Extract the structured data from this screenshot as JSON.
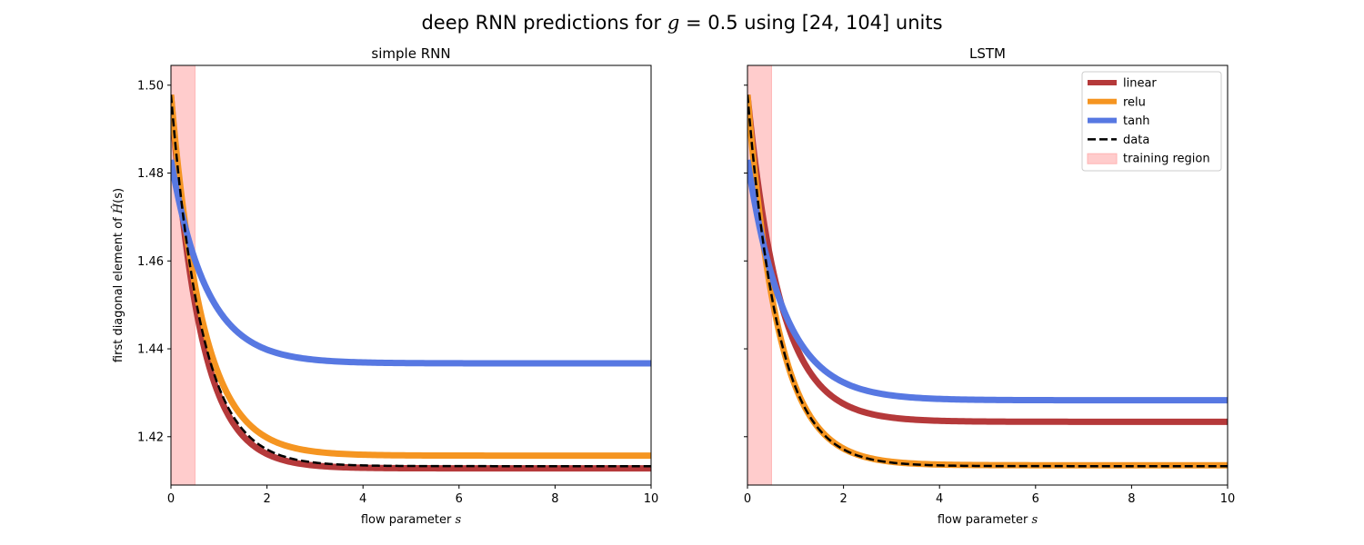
{
  "suptitle": {
    "prefix": "deep RNN predictions for ",
    "var": "g",
    "eq": " = 0.5",
    "suffix": " using [24, 104] units"
  },
  "ylabel": {
    "prefix": "first diagonal element of ",
    "symbol": "Ĥ",
    "arg": "(s)"
  },
  "xlabel": {
    "prefix": "flow parameter ",
    "var": "s"
  },
  "legend": {
    "placement": "top-right",
    "entries": [
      {
        "label": "linear",
        "kind": "line",
        "color": "#b5393a"
      },
      {
        "label": "relu",
        "kind": "line",
        "color": "#f59521"
      },
      {
        "label": "tanh",
        "kind": "line",
        "color": "#5778e2"
      },
      {
        "label": "data",
        "kind": "dashed",
        "color": "#000000"
      },
      {
        "label": "training region",
        "kind": "patch",
        "color": "#ffcccc"
      }
    ]
  },
  "chart_data": [
    {
      "type": "line",
      "title": "simple RNN",
      "xlabel": "flow parameter s",
      "ylabel": "first diagonal element of Ĥ(s)",
      "xlim": [
        0,
        10
      ],
      "ylim": [
        1.409,
        1.5045
      ],
      "xticks": [
        0,
        2,
        4,
        6,
        8,
        10
      ],
      "yticks": [
        1.42,
        1.44,
        1.46,
        1.48,
        1.5
      ],
      "grid": false,
      "training_region": [
        0,
        0.5
      ],
      "series": [
        {
          "name": "linear",
          "model": "exp",
          "start": 1.4978,
          "end": 1.4128,
          "rate": 1.63,
          "color": "#b5393a",
          "x": [
            0,
            0.5,
            1,
            1.5,
            2,
            3,
            4,
            6,
            8,
            10
          ],
          "y": [
            1.4978,
            1.4602,
            1.4389,
            1.4259,
            1.4195,
            1.4146,
            1.4132,
            1.4128,
            1.4128,
            1.4128
          ]
        },
        {
          "name": "relu",
          "model": "exp",
          "start": 1.4978,
          "end": 1.4157,
          "rate": 1.5,
          "color": "#f59521",
          "x": [
            0,
            0.5,
            1,
            1.5,
            2,
            3,
            4,
            6,
            8,
            10
          ],
          "y": [
            1.4978,
            1.4613,
            1.4432,
            1.4284,
            1.4233,
            1.4174,
            1.416,
            1.4157,
            1.4157,
            1.4157
          ]
        },
        {
          "name": "tanh",
          "model": "exp",
          "start": 1.483,
          "end": 1.4367,
          "rate": 1.35,
          "color": "#5778e2",
          "x": [
            0,
            0.5,
            1,
            1.5,
            2,
            3,
            4,
            6,
            8,
            10
          ],
          "y": [
            1.483,
            1.4604,
            1.4489,
            1.4427,
            1.4392,
            1.4375,
            1.4369,
            1.4367,
            1.4367,
            1.4367
          ]
        },
        {
          "name": "data",
          "model": "exp",
          "start": 1.4978,
          "end": 1.4133,
          "rate": 1.55,
          "color": "#000000",
          "dashed": true,
          "x": [
            0,
            0.5,
            1,
            1.5,
            2,
            3,
            4,
            6,
            8,
            10
          ],
          "y": [
            1.4978,
            1.4604,
            1.4403,
            1.4296,
            1.4219,
            1.4151,
            1.4137,
            1.4133,
            1.4133,
            1.4133
          ]
        }
      ]
    },
    {
      "type": "line",
      "title": "LSTM",
      "xlabel": "flow parameter s",
      "xlim": [
        0,
        10
      ],
      "ylim": [
        1.409,
        1.5045
      ],
      "xticks": [
        0,
        2,
        4,
        6,
        8,
        10
      ],
      "yticks": [
        1.42,
        1.44,
        1.46,
        1.48,
        1.5
      ],
      "grid": false,
      "training_region": [
        0,
        0.5
      ],
      "series": [
        {
          "name": "linear",
          "model": "exp",
          "start": 1.4978,
          "end": 1.4234,
          "rate": 1.45,
          "color": "#b5393a",
          "x": [
            0,
            0.5,
            1,
            1.5,
            2,
            3,
            4,
            6,
            8,
            10
          ],
          "y": [
            1.4978,
            1.459,
            1.441,
            1.432,
            1.4275,
            1.4244,
            1.4236,
            1.4234,
            1.4234,
            1.4234
          ]
        },
        {
          "name": "relu",
          "model": "exp",
          "start": 1.4978,
          "end": 1.4135,
          "rate": 1.55,
          "color": "#f59521",
          "x": [
            0,
            0.5,
            1,
            1.5,
            2,
            3,
            4,
            6,
            8,
            10
          ],
          "y": [
            1.4978,
            1.4605,
            1.4405,
            1.4298,
            1.4221,
            1.4153,
            1.4139,
            1.4135,
            1.4135,
            1.4135
          ]
        },
        {
          "name": "tanh",
          "model": "exp",
          "start": 1.483,
          "end": 1.4283,
          "rate": 1.3,
          "color": "#5778e2",
          "x": [
            0,
            0.5,
            1,
            1.5,
            2,
            3,
            4,
            6,
            8,
            10
          ],
          "y": [
            1.483,
            1.4595,
            1.4426,
            1.4356,
            1.4318,
            1.4293,
            1.4286,
            1.4283,
            1.4283,
            1.4283
          ]
        },
        {
          "name": "data",
          "model": "exp",
          "start": 1.4978,
          "end": 1.4133,
          "rate": 1.55,
          "color": "#000000",
          "dashed": true,
          "x": [
            0,
            0.5,
            1,
            1.5,
            2,
            3,
            4,
            6,
            8,
            10
          ],
          "y": [
            1.4978,
            1.4604,
            1.4403,
            1.4296,
            1.4219,
            1.4151,
            1.4137,
            1.4133,
            1.4133,
            1.4133
          ]
        }
      ]
    }
  ]
}
